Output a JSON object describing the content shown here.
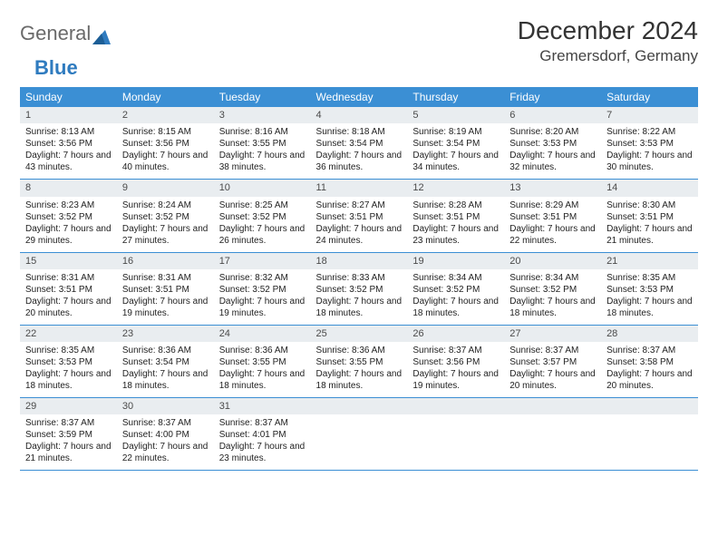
{
  "logo": {
    "text1": "General",
    "text2": "Blue"
  },
  "title": "December 2024",
  "location": "Gremersdorf, Germany",
  "colors": {
    "header_bg": "#3b8fd4",
    "header_text": "#ffffff",
    "daynum_bg": "#e9edf0",
    "row_border": "#3b8fd4",
    "logo_accent": "#2f7bbf",
    "body_bg": "#ffffff"
  },
  "font": {
    "family": "Arial",
    "body_size_pt": 10,
    "header_size_pt": 12,
    "title_size_pt": 28
  },
  "weekdays": [
    "Sunday",
    "Monday",
    "Tuesday",
    "Wednesday",
    "Thursday",
    "Friday",
    "Saturday"
  ],
  "weeks": [
    [
      {
        "num": "1",
        "sunrise": "Sunrise: 8:13 AM",
        "sunset": "Sunset: 3:56 PM",
        "daylight": "Daylight: 7 hours and 43 minutes."
      },
      {
        "num": "2",
        "sunrise": "Sunrise: 8:15 AM",
        "sunset": "Sunset: 3:56 PM",
        "daylight": "Daylight: 7 hours and 40 minutes."
      },
      {
        "num": "3",
        "sunrise": "Sunrise: 8:16 AM",
        "sunset": "Sunset: 3:55 PM",
        "daylight": "Daylight: 7 hours and 38 minutes."
      },
      {
        "num": "4",
        "sunrise": "Sunrise: 8:18 AM",
        "sunset": "Sunset: 3:54 PM",
        "daylight": "Daylight: 7 hours and 36 minutes."
      },
      {
        "num": "5",
        "sunrise": "Sunrise: 8:19 AM",
        "sunset": "Sunset: 3:54 PM",
        "daylight": "Daylight: 7 hours and 34 minutes."
      },
      {
        "num": "6",
        "sunrise": "Sunrise: 8:20 AM",
        "sunset": "Sunset: 3:53 PM",
        "daylight": "Daylight: 7 hours and 32 minutes."
      },
      {
        "num": "7",
        "sunrise": "Sunrise: 8:22 AM",
        "sunset": "Sunset: 3:53 PM",
        "daylight": "Daylight: 7 hours and 30 minutes."
      }
    ],
    [
      {
        "num": "8",
        "sunrise": "Sunrise: 8:23 AM",
        "sunset": "Sunset: 3:52 PM",
        "daylight": "Daylight: 7 hours and 29 minutes."
      },
      {
        "num": "9",
        "sunrise": "Sunrise: 8:24 AM",
        "sunset": "Sunset: 3:52 PM",
        "daylight": "Daylight: 7 hours and 27 minutes."
      },
      {
        "num": "10",
        "sunrise": "Sunrise: 8:25 AM",
        "sunset": "Sunset: 3:52 PM",
        "daylight": "Daylight: 7 hours and 26 minutes."
      },
      {
        "num": "11",
        "sunrise": "Sunrise: 8:27 AM",
        "sunset": "Sunset: 3:51 PM",
        "daylight": "Daylight: 7 hours and 24 minutes."
      },
      {
        "num": "12",
        "sunrise": "Sunrise: 8:28 AM",
        "sunset": "Sunset: 3:51 PM",
        "daylight": "Daylight: 7 hours and 23 minutes."
      },
      {
        "num": "13",
        "sunrise": "Sunrise: 8:29 AM",
        "sunset": "Sunset: 3:51 PM",
        "daylight": "Daylight: 7 hours and 22 minutes."
      },
      {
        "num": "14",
        "sunrise": "Sunrise: 8:30 AM",
        "sunset": "Sunset: 3:51 PM",
        "daylight": "Daylight: 7 hours and 21 minutes."
      }
    ],
    [
      {
        "num": "15",
        "sunrise": "Sunrise: 8:31 AM",
        "sunset": "Sunset: 3:51 PM",
        "daylight": "Daylight: 7 hours and 20 minutes."
      },
      {
        "num": "16",
        "sunrise": "Sunrise: 8:31 AM",
        "sunset": "Sunset: 3:51 PM",
        "daylight": "Daylight: 7 hours and 19 minutes."
      },
      {
        "num": "17",
        "sunrise": "Sunrise: 8:32 AM",
        "sunset": "Sunset: 3:52 PM",
        "daylight": "Daylight: 7 hours and 19 minutes."
      },
      {
        "num": "18",
        "sunrise": "Sunrise: 8:33 AM",
        "sunset": "Sunset: 3:52 PM",
        "daylight": "Daylight: 7 hours and 18 minutes."
      },
      {
        "num": "19",
        "sunrise": "Sunrise: 8:34 AM",
        "sunset": "Sunset: 3:52 PM",
        "daylight": "Daylight: 7 hours and 18 minutes."
      },
      {
        "num": "20",
        "sunrise": "Sunrise: 8:34 AM",
        "sunset": "Sunset: 3:52 PM",
        "daylight": "Daylight: 7 hours and 18 minutes."
      },
      {
        "num": "21",
        "sunrise": "Sunrise: 8:35 AM",
        "sunset": "Sunset: 3:53 PM",
        "daylight": "Daylight: 7 hours and 18 minutes."
      }
    ],
    [
      {
        "num": "22",
        "sunrise": "Sunrise: 8:35 AM",
        "sunset": "Sunset: 3:53 PM",
        "daylight": "Daylight: 7 hours and 18 minutes."
      },
      {
        "num": "23",
        "sunrise": "Sunrise: 8:36 AM",
        "sunset": "Sunset: 3:54 PM",
        "daylight": "Daylight: 7 hours and 18 minutes."
      },
      {
        "num": "24",
        "sunrise": "Sunrise: 8:36 AM",
        "sunset": "Sunset: 3:55 PM",
        "daylight": "Daylight: 7 hours and 18 minutes."
      },
      {
        "num": "25",
        "sunrise": "Sunrise: 8:36 AM",
        "sunset": "Sunset: 3:55 PM",
        "daylight": "Daylight: 7 hours and 18 minutes."
      },
      {
        "num": "26",
        "sunrise": "Sunrise: 8:37 AM",
        "sunset": "Sunset: 3:56 PM",
        "daylight": "Daylight: 7 hours and 19 minutes."
      },
      {
        "num": "27",
        "sunrise": "Sunrise: 8:37 AM",
        "sunset": "Sunset: 3:57 PM",
        "daylight": "Daylight: 7 hours and 20 minutes."
      },
      {
        "num": "28",
        "sunrise": "Sunrise: 8:37 AM",
        "sunset": "Sunset: 3:58 PM",
        "daylight": "Daylight: 7 hours and 20 minutes."
      }
    ],
    [
      {
        "num": "29",
        "sunrise": "Sunrise: 8:37 AM",
        "sunset": "Sunset: 3:59 PM",
        "daylight": "Daylight: 7 hours and 21 minutes."
      },
      {
        "num": "30",
        "sunrise": "Sunrise: 8:37 AM",
        "sunset": "Sunset: 4:00 PM",
        "daylight": "Daylight: 7 hours and 22 minutes."
      },
      {
        "num": "31",
        "sunrise": "Sunrise: 8:37 AM",
        "sunset": "Sunset: 4:01 PM",
        "daylight": "Daylight: 7 hours and 23 minutes."
      },
      {
        "empty": true
      },
      {
        "empty": true
      },
      {
        "empty": true
      },
      {
        "empty": true
      }
    ]
  ]
}
